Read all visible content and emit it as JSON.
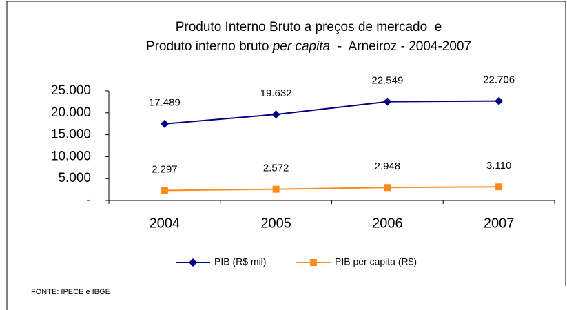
{
  "chart_data": {
    "type": "line",
    "title": {
      "line1": "Produto Interno Bruto a preços de mercado  e",
      "line2": [
        "Produto interno bruto ",
        "per capita",
        "  -  Arneiroz - 2004-2007"
      ]
    },
    "categories": [
      "2004",
      "2005",
      "2006",
      "2007"
    ],
    "series": [
      {
        "name": "PIB (R$ mil)",
        "color": "#000080",
        "marker": "diamond",
        "values": [
          17489,
          19632,
          22549,
          22706
        ],
        "value_labels": [
          "17.489",
          "19.632",
          "22.549",
          "22.706"
        ]
      },
      {
        "name": "PIB per capita (R$)",
        "color": "#ff8c1a",
        "marker": "square",
        "values": [
          2297,
          2572,
          2948,
          3110
        ],
        "value_labels": [
          "2.297",
          "2.572",
          "2.948",
          "3.110"
        ]
      }
    ],
    "ylim": [
      0,
      25000
    ],
    "yticks": [
      {
        "value": 0,
        "label": "-"
      },
      {
        "value": 5000,
        "label": "5.000"
      },
      {
        "value": 10000,
        "label": "10.000"
      },
      {
        "value": 15000,
        "label": "15.000"
      },
      {
        "value": 20000,
        "label": "20.000"
      },
      {
        "value": 25000,
        "label": "25.000"
      }
    ],
    "legend": "bottom",
    "source": "FONTE: IPECE e IBGE"
  }
}
